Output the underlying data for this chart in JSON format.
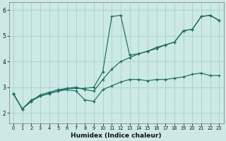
{
  "xlabel": "Humidex (Indice chaleur)",
  "bg_color": "#cce9e5",
  "grid_color": "#aad4cf",
  "line_color": "#1a6b5e",
  "series1_x": [
    0,
    1,
    2,
    3,
    4,
    5,
    6,
    7,
    8,
    9,
    10,
    11,
    12,
    13,
    14,
    15,
    16,
    17,
    18,
    19,
    20,
    21,
    22,
    23
  ],
  "series1_y": [
    2.75,
    2.15,
    2.45,
    2.65,
    2.75,
    2.85,
    2.95,
    2.95,
    2.95,
    3.0,
    3.6,
    5.75,
    5.8,
    4.25,
    4.3,
    4.4,
    4.5,
    4.65,
    4.75,
    5.2,
    5.25,
    5.75,
    5.8,
    5.6
  ],
  "series2_x": [
    0,
    1,
    2,
    3,
    4,
    5,
    6,
    7,
    8,
    9,
    10,
    11,
    12,
    13,
    14,
    15,
    16,
    17,
    18,
    19,
    20,
    21,
    22,
    23
  ],
  "series2_y": [
    2.75,
    2.15,
    2.45,
    2.7,
    2.8,
    2.9,
    2.95,
    3.0,
    2.9,
    2.85,
    3.3,
    3.7,
    4.0,
    4.15,
    4.3,
    4.4,
    4.55,
    4.65,
    4.75,
    5.2,
    5.25,
    5.75,
    5.8,
    5.6
  ],
  "series3_x": [
    0,
    1,
    2,
    3,
    4,
    5,
    6,
    7,
    8,
    9,
    10,
    11,
    12,
    13,
    14,
    15,
    16,
    17,
    18,
    19,
    20,
    21,
    22,
    23
  ],
  "series3_y": [
    2.75,
    2.15,
    2.5,
    2.65,
    2.75,
    2.85,
    2.9,
    2.85,
    2.5,
    2.45,
    2.9,
    3.05,
    3.2,
    3.3,
    3.3,
    3.25,
    3.3,
    3.3,
    3.35,
    3.4,
    3.5,
    3.55,
    3.45,
    3.45
  ],
  "xlim": [
    -0.5,
    23.5
  ],
  "ylim": [
    1.6,
    6.3
  ],
  "yticks": [
    2,
    3,
    4,
    5,
    6
  ],
  "xticks": [
    0,
    1,
    2,
    3,
    4,
    5,
    6,
    7,
    8,
    9,
    10,
    11,
    12,
    13,
    14,
    15,
    16,
    17,
    18,
    19,
    20,
    21,
    22,
    23
  ]
}
